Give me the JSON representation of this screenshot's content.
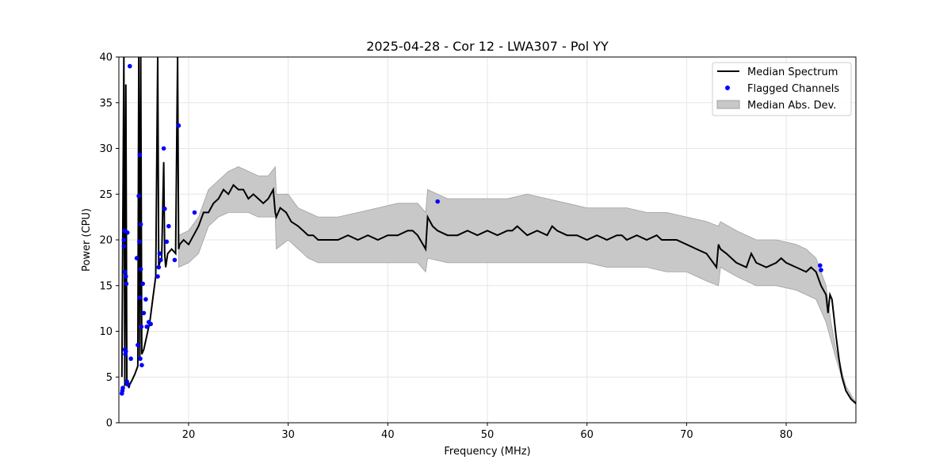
{
  "chart_data": {
    "type": "line",
    "title": "2025-04-28 - Cor 12 - LWA307 - Pol YY",
    "xlabel": "Frequency (MHz)",
    "ylabel": "Power (CPU)",
    "xlim": [
      13,
      87
    ],
    "ylim": [
      0,
      40
    ],
    "xticks": [
      "20",
      "30",
      "40",
      "50",
      "60",
      "70",
      "80"
    ],
    "yticks": [
      "0",
      "5",
      "10",
      "15",
      "20",
      "25",
      "30",
      "35",
      "40"
    ],
    "grid": true,
    "legend_position": "top-right",
    "legend": [
      "Median Spectrum",
      "Flagged Channels",
      "Median Abs. Dev."
    ],
    "colors": {
      "median": "#000000",
      "flagged": "#0000ff",
      "mad_fill": "#c8c8c8",
      "mad_edge": "#a0a0a0"
    },
    "series": [
      {
        "name": "Median Spectrum",
        "x": [
          13.3,
          13.5,
          13.6,
          13.7,
          13.8,
          13.9,
          14.0,
          14.1,
          14.3,
          14.6,
          14.9,
          15.0,
          15.1,
          15.2,
          15.3,
          15.5,
          15.8,
          16.1,
          16.4,
          16.7,
          16.9,
          17.0,
          17.1,
          17.3,
          17.5,
          17.6,
          17.7,
          17.9,
          18.3,
          18.7,
          18.9,
          19.0,
          19.1,
          19.5,
          20.0,
          20.5,
          21.0,
          21.5,
          22.0,
          22.5,
          23.0,
          23.5,
          24.0,
          24.5,
          25.0,
          25.5,
          26.0,
          26.5,
          27.0,
          27.5,
          28.0,
          28.5,
          28.7,
          28.8,
          29.2,
          29.8,
          30.3,
          31.0,
          31.5,
          32.0,
          32.5,
          33.0,
          34.0,
          35.0,
          36.0,
          37.0,
          38.0,
          39.0,
          40.0,
          41.0,
          42.0,
          42.5,
          43.0,
          43.8,
          44.0,
          44.5,
          45.0,
          46.0,
          47.0,
          48.0,
          49.0,
          50.0,
          51.0,
          52.0,
          52.5,
          53.0,
          54.0,
          55.0,
          56.0,
          56.5,
          57.0,
          58.0,
          59.0,
          60.0,
          61.0,
          62.0,
          63.0,
          63.5,
          64.0,
          65.0,
          66.0,
          67.0,
          67.5,
          68.0,
          69.0,
          70.0,
          71.0,
          72.0,
          73.0,
          73.2,
          73.4,
          74.0,
          75.0,
          76.0,
          76.5,
          77.0,
          78.0,
          79.0,
          79.5,
          80.0,
          81.0,
          82.0,
          82.5,
          83.0,
          83.5,
          84.0,
          84.2,
          84.4,
          84.6,
          84.8,
          85.0,
          85.3,
          85.6,
          86.0,
          86.5,
          87.0
        ],
        "y": [
          5.0,
          40.0,
          4.0,
          37.0,
          4.0,
          4.5,
          3.8,
          4.2,
          4.6,
          5.3,
          6.2,
          40.0,
          7.0,
          40.0,
          7.5,
          8.0,
          9.5,
          11.0,
          13.5,
          16.0,
          40.0,
          17.0,
          17.5,
          18.0,
          28.5,
          18.5,
          17.0,
          18.5,
          19.0,
          18.5,
          40.0,
          19.0,
          19.5,
          20.0,
          19.5,
          20.5,
          21.5,
          23.0,
          23.0,
          24.0,
          24.5,
          25.5,
          25.0,
          26.0,
          25.5,
          25.5,
          24.5,
          25.0,
          24.5,
          24.0,
          24.5,
          25.5,
          23.0,
          22.5,
          23.5,
          23.0,
          22.0,
          21.5,
          21.0,
          20.5,
          20.5,
          20.0,
          20.0,
          20.0,
          20.5,
          20.0,
          20.5,
          20.0,
          20.5,
          20.5,
          21.0,
          21.0,
          20.5,
          19.0,
          22.5,
          21.5,
          21.0,
          20.5,
          20.5,
          21.0,
          20.5,
          21.0,
          20.5,
          21.0,
          21.0,
          21.5,
          20.5,
          21.0,
          20.5,
          21.5,
          21.0,
          20.5,
          20.5,
          20.0,
          20.5,
          20.0,
          20.5,
          20.5,
          20.0,
          20.5,
          20.0,
          20.5,
          20.0,
          20.0,
          20.0,
          19.5,
          19.0,
          18.5,
          17.0,
          19.5,
          19.0,
          18.5,
          17.5,
          17.0,
          18.5,
          17.5,
          17.0,
          17.5,
          18.0,
          17.5,
          17.0,
          16.5,
          17.0,
          16.5,
          15.0,
          14.0,
          12.0,
          14.0,
          13.5,
          11.5,
          9.5,
          7.0,
          5.0,
          3.5,
          2.6,
          2.1
        ]
      }
    ],
    "mad_band": {
      "name": "Median Abs. Dev.",
      "x": [
        19.0,
        20.0,
        21.0,
        22.0,
        23.0,
        24.0,
        25.0,
        26.0,
        27.0,
        28.0,
        28.7,
        28.8,
        30.0,
        31.0,
        32.0,
        33.0,
        35.0,
        37.0,
        39.0,
        41.0,
        43.0,
        43.8,
        44.0,
        46.0,
        48.0,
        50.0,
        52.0,
        54.0,
        56.0,
        58.0,
        60.0,
        62.0,
        64.0,
        66.0,
        68.0,
        70.0,
        72.0,
        73.2,
        73.4,
        75.0,
        77.0,
        79.0,
        81.0,
        82.0,
        83.0,
        84.0,
        84.5,
        85.0,
        86.0,
        87.0
      ],
      "upper": [
        20.5,
        21.0,
        22.5,
        25.5,
        26.5,
        27.5,
        28.0,
        27.5,
        27.0,
        27.0,
        28.0,
        25.0,
        25.0,
        23.5,
        23.0,
        22.5,
        22.5,
        23.0,
        23.5,
        24.0,
        24.0,
        23.0,
        25.5,
        24.5,
        24.5,
        24.5,
        24.5,
        25.0,
        24.5,
        24.0,
        23.5,
        23.5,
        23.5,
        23.0,
        23.0,
        22.5,
        22.0,
        21.5,
        22.0,
        21.0,
        20.0,
        20.0,
        19.5,
        19.0,
        18.0,
        15.0,
        11.0,
        8.0,
        4.0,
        2.2
      ],
      "lower": [
        17.0,
        17.5,
        18.5,
        21.5,
        22.5,
        23.0,
        23.0,
        23.0,
        22.5,
        22.5,
        22.5,
        19.0,
        20.0,
        19.0,
        18.0,
        17.5,
        17.5,
        17.5,
        17.5,
        17.5,
        17.5,
        16.5,
        18.0,
        17.5,
        17.5,
        17.5,
        17.5,
        17.5,
        17.5,
        17.5,
        17.5,
        17.0,
        17.0,
        17.0,
        16.5,
        16.5,
        15.5,
        15.0,
        17.0,
        16.0,
        15.0,
        15.0,
        14.5,
        14.0,
        13.5,
        11.0,
        9.0,
        7.0,
        3.5,
        2.0
      ]
    },
    "flagged_channels": {
      "name": "Flagged Channels",
      "x": [
        13.3,
        13.35,
        13.4,
        13.5,
        13.5,
        13.55,
        13.6,
        13.6,
        13.65,
        13.7,
        13.7,
        13.75,
        13.8,
        13.85,
        13.9,
        14.1,
        14.2,
        14.8,
        14.9,
        15.0,
        15.05,
        15.1,
        15.1,
        15.15,
        15.2,
        15.2,
        15.25,
        15.3,
        15.4,
        15.5,
        15.7,
        15.8,
        16.0,
        16.2,
        16.9,
        17.0,
        17.1,
        17.2,
        17.5,
        17.6,
        17.8,
        18.0,
        18.6,
        19.0,
        20.6,
        45.0,
        83.4,
        83.5
      ],
      "y": [
        3.2,
        3.5,
        3.8,
        20.0,
        19.3,
        21.0,
        16.5,
        8.0,
        7.5,
        7.8,
        16.0,
        15.2,
        4.5,
        20.8,
        4.2,
        39.0,
        7.0,
        18.0,
        8.5,
        24.8,
        19.8,
        29.3,
        13.7,
        7.0,
        21.7,
        16.8,
        10.5,
        6.3,
        15.2,
        12.0,
        13.5,
        10.5,
        11.0,
        10.8,
        16.0,
        17.0,
        18.5,
        17.8,
        30.0,
        23.4,
        19.8,
        21.5,
        17.8,
        32.5,
        23.0,
        24.2,
        17.2,
        16.7
      ]
    }
  }
}
